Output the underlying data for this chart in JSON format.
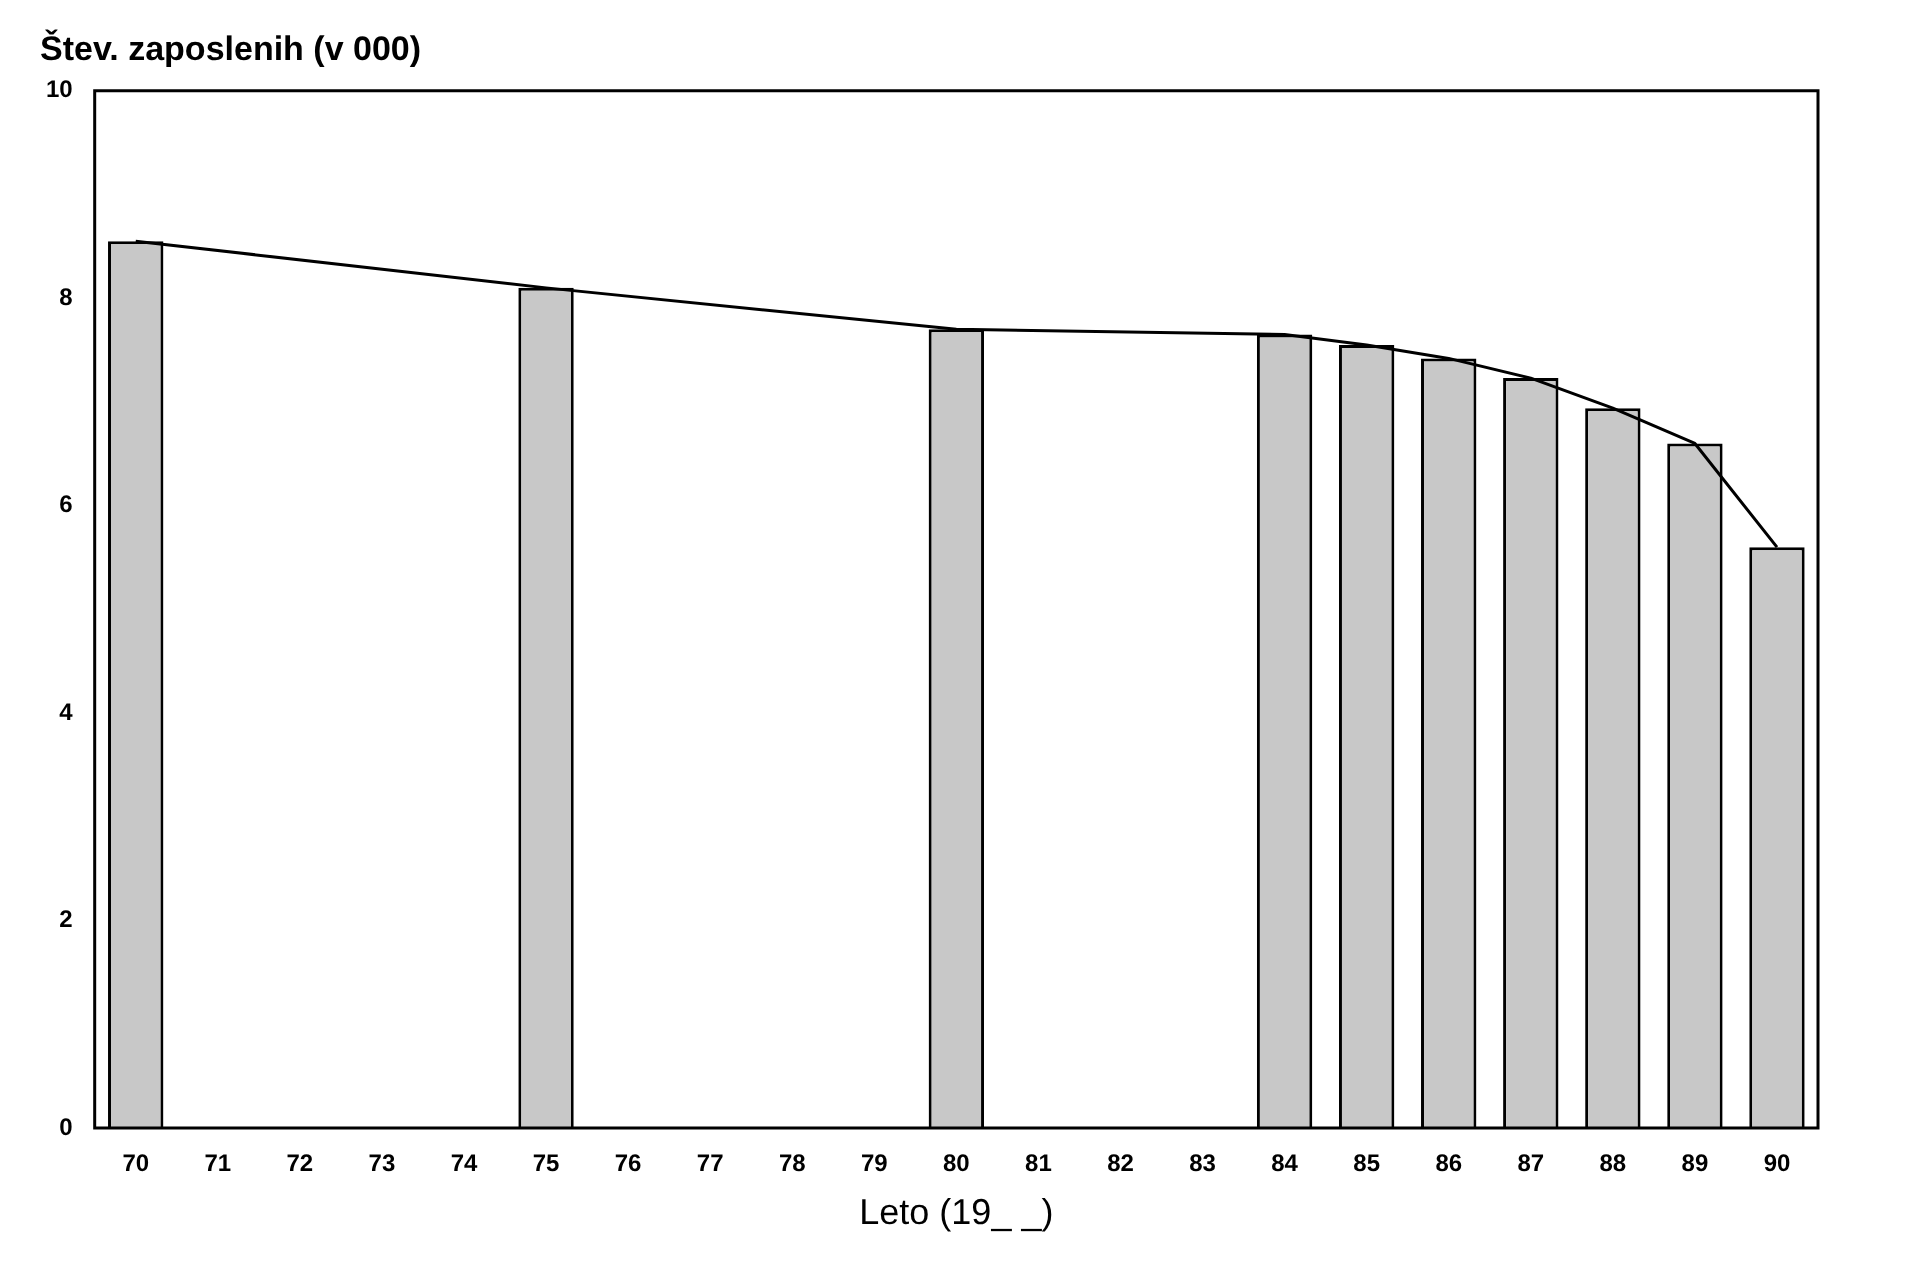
{
  "chart_data": {
    "type": "bar",
    "ylabel": "Štev. zaposlenih (v 000)",
    "xlabel": "Leto (19_ _)",
    "categories": [
      "70",
      "71",
      "72",
      "73",
      "74",
      "75",
      "76",
      "77",
      "78",
      "79",
      "80",
      "81",
      "82",
      "83",
      "84",
      "85",
      "86",
      "87",
      "88",
      "89",
      "90"
    ],
    "series": [
      {
        "color": "#c8c8c8",
        "values": [
          8.55,
          null,
          null,
          null,
          null,
          8.1,
          null,
          null,
          null,
          null,
          7.7,
          null,
          null,
          null,
          7.65,
          7.55,
          7.42,
          7.23,
          6.94,
          6.6,
          5.6
        ]
      },
      {
        "type": "line",
        "color": "#000000",
        "values": [
          8.55,
          null,
          null,
          null,
          null,
          8.1,
          null,
          null,
          null,
          null,
          7.7,
          null,
          null,
          null,
          7.65,
          7.55,
          7.42,
          7.23,
          6.94,
          6.6,
          5.6
        ]
      }
    ],
    "ylim": [
      0,
      10
    ],
    "yticks": [
      0,
      2,
      4,
      6,
      8,
      10
    ],
    "grid": false,
    "legend": false
  }
}
